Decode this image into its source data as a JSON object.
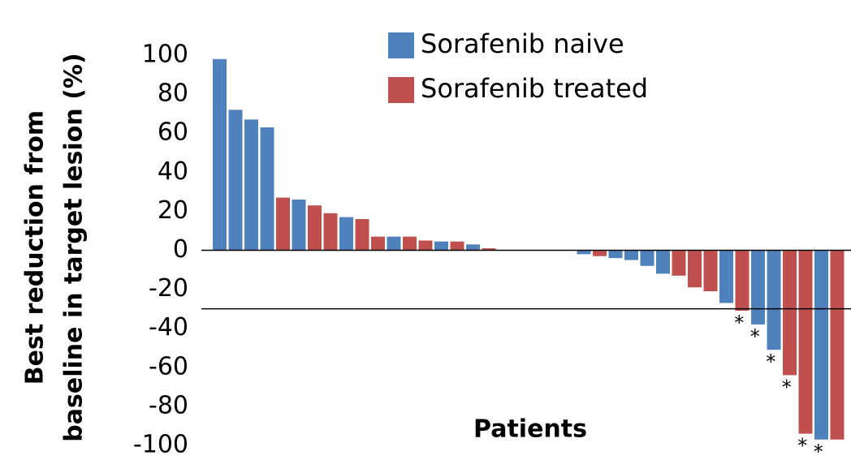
{
  "chart_data": {
    "type": "bar",
    "y_label_lines": [
      "Best reduction from",
      "baseline in target lesion (%)"
    ],
    "x_label": "Patients",
    "series": [
      {
        "name": "Sorafenib naive",
        "color": "#4f81bd",
        "values": [
          98,
          72,
          67,
          63,
          null,
          26,
          null,
          null,
          17,
          null,
          null,
          7,
          null,
          null,
          4.5,
          null,
          3,
          null,
          null,
          null,
          null,
          null,
          null,
          -2,
          null,
          -4,
          -5,
          -8,
          -12,
          null,
          null,
          null,
          -27,
          null,
          -38,
          -51,
          null,
          null,
          -97,
          null
        ]
      },
      {
        "name": "Sorafenib treated",
        "color": "#c0504d",
        "values": [
          null,
          null,
          null,
          null,
          27,
          null,
          23,
          19,
          null,
          16,
          7,
          null,
          7,
          5,
          null,
          4.5,
          null,
          1,
          null,
          null,
          null,
          null,
          null,
          null,
          -3,
          null,
          null,
          null,
          null,
          -13,
          -19,
          -21,
          null,
          -31,
          null,
          null,
          -64,
          -94,
          null,
          -97
        ]
      }
    ],
    "annotations": [
      null,
      null,
      null,
      null,
      null,
      null,
      null,
      null,
      null,
      null,
      null,
      null,
      null,
      null,
      null,
      null,
      null,
      null,
      null,
      null,
      null,
      null,
      null,
      null,
      null,
      null,
      null,
      null,
      null,
      null,
      null,
      null,
      null,
      "*",
      "*",
      "*",
      "*",
      "*",
      "*",
      null
    ],
    "reference_lines": [
      0,
      -30
    ],
    "ylim": [
      -100,
      100
    ],
    "yticks": [
      100,
      80,
      60,
      40,
      20,
      0,
      -20,
      -40,
      -60,
      -80,
      -100
    ],
    "legend": "top"
  }
}
